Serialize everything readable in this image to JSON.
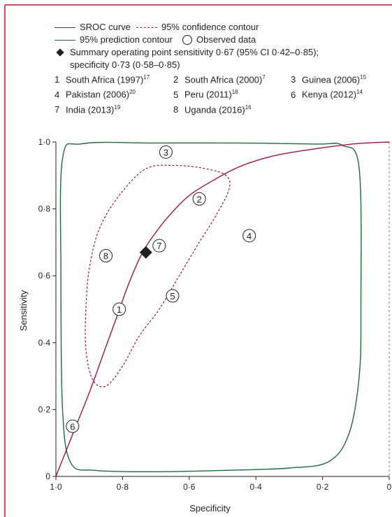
{
  "colors": {
    "sroc": "#a0124a",
    "prediction": "#1f6b3a",
    "ink": "#231f20",
    "border": "#c8102e"
  },
  "legend": {
    "sroc": "SROC curve",
    "confidence": "95% confidence contour",
    "prediction": "95% prediction contour",
    "observed": "Observed data",
    "summary_line1": "Summary operating point sensitivity 0·67 (95% CI 0·42–0·85);",
    "summary_line2": "specificity 0·73 (0·58–0·85)"
  },
  "studies": [
    {
      "num": "1",
      "name": "South Africa (1997)",
      "ref": "17"
    },
    {
      "num": "2",
      "name": "South Africa (2000)",
      "ref": "7"
    },
    {
      "num": "3",
      "name": "Guinea (2006)",
      "ref": "15"
    },
    {
      "num": "4",
      "name": "Pakistan (2006)",
      "ref": "20"
    },
    {
      "num": "5",
      "name": "Peru (2011)",
      "ref": "18"
    },
    {
      "num": "6",
      "name": "Kenya (2012)",
      "ref": "14"
    },
    {
      "num": "7",
      "name": "India (2013)",
      "ref": "19"
    },
    {
      "num": "8",
      "name": "Uganda (2016)",
      "ref": "16"
    }
  ],
  "chart_data": {
    "type": "scatter",
    "xlabel": "Specificity",
    "ylabel": "Sensitivity",
    "xlim": [
      1.0,
      0.0
    ],
    "ylim": [
      0.0,
      1.0
    ],
    "x_ticks": [
      {
        "value": 1.0,
        "label": "1·0"
      },
      {
        "value": 0.8,
        "label": "0·8"
      },
      {
        "value": 0.6,
        "label": "0·6"
      },
      {
        "value": 0.4,
        "label": "0·4"
      },
      {
        "value": 0.2,
        "label": "0·2"
      },
      {
        "value": 0.0,
        "label": "0"
      }
    ],
    "y_ticks": [
      {
        "value": 0.0,
        "label": "0"
      },
      {
        "value": 0.2,
        "label": "0·2"
      },
      {
        "value": 0.4,
        "label": "0·4"
      },
      {
        "value": 0.6,
        "label": "0·6"
      },
      {
        "value": 0.8,
        "label": "0·8"
      },
      {
        "value": 1.0,
        "label": "1·0"
      }
    ],
    "observed": [
      {
        "label": "1",
        "specificity": 0.81,
        "sensitivity": 0.5
      },
      {
        "label": "2",
        "specificity": 0.57,
        "sensitivity": 0.83
      },
      {
        "label": "3",
        "specificity": 0.67,
        "sensitivity": 0.97
      },
      {
        "label": "4",
        "specificity": 0.42,
        "sensitivity": 0.72
      },
      {
        "label": "5",
        "specificity": 0.65,
        "sensitivity": 0.54
      },
      {
        "label": "6",
        "specificity": 0.95,
        "sensitivity": 0.15
      },
      {
        "label": "7",
        "specificity": 0.69,
        "sensitivity": 0.69
      },
      {
        "label": "8",
        "specificity": 0.85,
        "sensitivity": 0.66
      }
    ],
    "summary_point": {
      "specificity": 0.73,
      "sensitivity": 0.67
    },
    "sroc_curve": [
      [
        1.0,
        0.0
      ],
      [
        0.98,
        0.05
      ],
      [
        0.94,
        0.15
      ],
      [
        0.9,
        0.25
      ],
      [
        0.86,
        0.36
      ],
      [
        0.82,
        0.47
      ],
      [
        0.78,
        0.58
      ],
      [
        0.74,
        0.67
      ],
      [
        0.7,
        0.73
      ],
      [
        0.66,
        0.78
      ],
      [
        0.6,
        0.84
      ],
      [
        0.52,
        0.89
      ],
      [
        0.44,
        0.93
      ],
      [
        0.34,
        0.96
      ],
      [
        0.22,
        0.98
      ],
      [
        0.1,
        0.995
      ],
      [
        0.0,
        1.0
      ]
    ],
    "confidence_contour": [
      [
        0.73,
        0.92
      ],
      [
        0.64,
        0.93
      ],
      [
        0.55,
        0.92
      ],
      [
        0.49,
        0.9
      ],
      [
        0.48,
        0.86
      ],
      [
        0.52,
        0.78
      ],
      [
        0.57,
        0.7
      ],
      [
        0.63,
        0.6
      ],
      [
        0.69,
        0.5
      ],
      [
        0.75,
        0.42
      ],
      [
        0.8,
        0.33
      ],
      [
        0.85,
        0.27
      ],
      [
        0.89,
        0.29
      ],
      [
        0.91,
        0.38
      ],
      [
        0.91,
        0.5
      ],
      [
        0.9,
        0.62
      ],
      [
        0.87,
        0.74
      ],
      [
        0.81,
        0.84
      ]
    ],
    "prediction_contour": [
      [
        0.92,
        0.995
      ],
      [
        0.7,
        0.997
      ],
      [
        0.45,
        0.997
      ],
      [
        0.22,
        0.994
      ],
      [
        0.14,
        0.99
      ],
      [
        0.09,
        0.92
      ],
      [
        0.085,
        0.5
      ],
      [
        0.09,
        0.3
      ],
      [
        0.12,
        0.13
      ],
      [
        0.18,
        0.045
      ],
      [
        0.3,
        0.025
      ],
      [
        0.5,
        0.018
      ],
      [
        0.7,
        0.014
      ],
      [
        0.88,
        0.018
      ],
      [
        0.955,
        0.04
      ],
      [
        0.98,
        0.2
      ],
      [
        0.985,
        0.6
      ],
      [
        0.98,
        0.95
      ]
    ]
  }
}
